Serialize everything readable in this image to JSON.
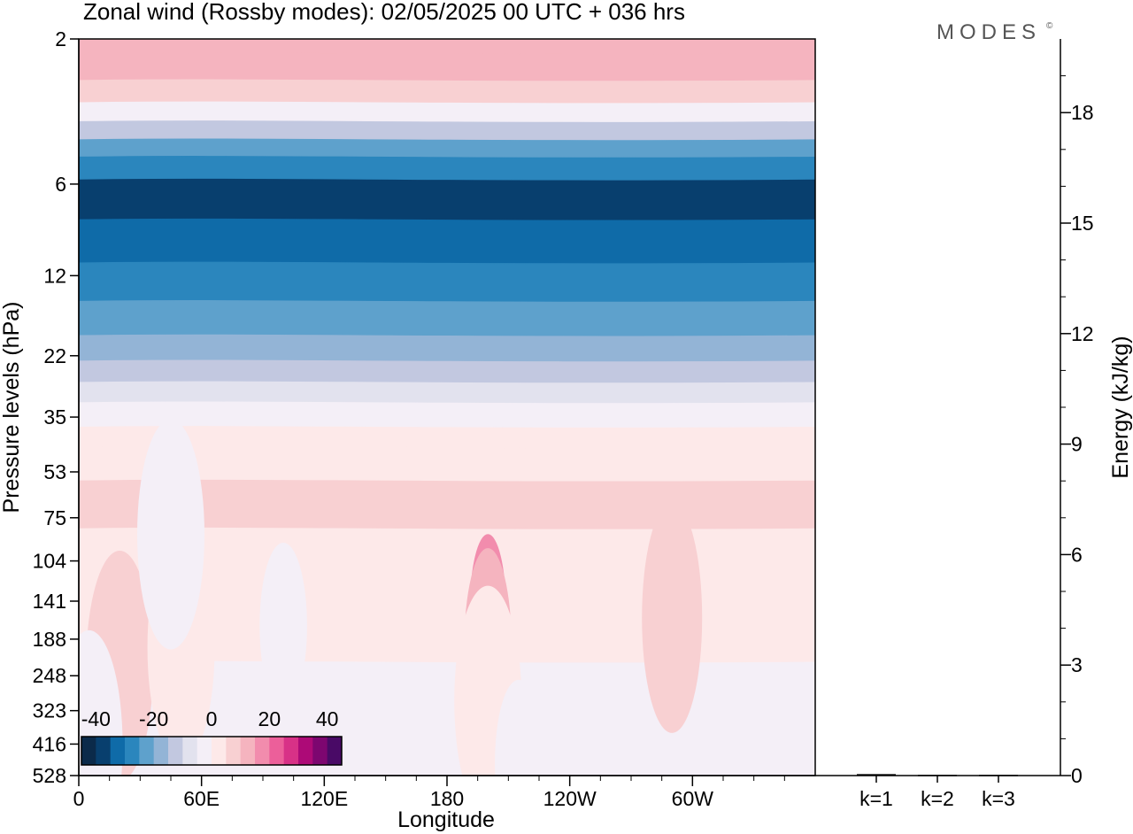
{
  "chart_data": [
    {
      "type": "heatmap",
      "title": "Zonal wind (Rossby modes):  02/05/2025  00 UTC  + 036 hrs",
      "xlabel": "Longitude",
      "ylabel": "Pressure levels (hPa)",
      "x_ticks": [
        "0",
        "60E",
        "120E",
        "180",
        "120W",
        "60W"
      ],
      "y_ticks": [
        "2",
        "6",
        "12",
        "22",
        "35",
        "53",
        "75",
        "104",
        "141",
        "188",
        "248",
        "323",
        "416",
        "528"
      ],
      "y_scale": "log, pressure increasing downward",
      "colorbar": {
        "ticks": [
          "-40",
          "-20",
          "0",
          "20",
          "40"
        ],
        "range": [
          -45,
          45
        ],
        "step": 5,
        "colors": [
          "#0b2a4a",
          "#083f6e",
          "#0f6ba8",
          "#2b86bd",
          "#5ea1cc",
          "#93b4d6",
          "#c2c8e0",
          "#e2e2ee",
          "#f4eff7",
          "#fde9e9",
          "#f8d0d2",
          "#f5b4bf",
          "#f28cad",
          "#ec5f9a",
          "#d83187",
          "#ad0a77",
          "#7d0670",
          "#490a66"
        ]
      },
      "bands": [
        {
          "p": 2,
          "u": 14
        },
        {
          "p": 2.5,
          "u": 12
        },
        {
          "p": 3,
          "u": 6
        },
        {
          "p": 3.5,
          "u": -2
        },
        {
          "p": 4,
          "u": -12
        },
        {
          "p": 4.6,
          "u": -22
        },
        {
          "p": 5.2,
          "u": -30
        },
        {
          "p": 6.5,
          "u": -36
        },
        {
          "p": 9.5,
          "u": -31
        },
        {
          "p": 12.5,
          "u": -28
        },
        {
          "p": 17,
          "u": -22
        },
        {
          "p": 21,
          "u": -17
        },
        {
          "p": 25,
          "u": -12
        },
        {
          "p": 29,
          "u": -7
        },
        {
          "p": 34,
          "u": -2
        },
        {
          "p": 42,
          "u": 2
        },
        {
          "p": 46,
          "u": 4
        },
        {
          "p": 70,
          "u": 6
        },
        {
          "p": 95,
          "u": 2
        },
        {
          "p": 528,
          "u": -1
        }
      ],
      "features": [
        {
          "lon": 200,
          "p": 150,
          "u": 16
        },
        {
          "lon": 200,
          "p": 200,
          "u": 10
        },
        {
          "lon": 200,
          "p": 300,
          "u": 4
        },
        {
          "lon": 290,
          "p": 160,
          "u": 7
        },
        {
          "lon": 20,
          "p": 230,
          "u": 6
        },
        {
          "lon": 50,
          "p": 200,
          "u": 4
        },
        {
          "lon": 45,
          "p": 85,
          "u": -4
        },
        {
          "lon": 100,
          "p": 170,
          "u": -3
        },
        {
          "lon": 5,
          "p": 420,
          "u": -4
        },
        {
          "lon": 215,
          "p": 480,
          "u": -3
        }
      ]
    },
    {
      "type": "bar",
      "ylabel": "Energy (kJ/kg)",
      "categories": [
        "k=1",
        "k=2",
        "k=3"
      ],
      "values": [
        0.04,
        0.02,
        0.02
      ],
      "ylim": [
        0,
        20
      ],
      "y_ticks": [
        "0",
        "3",
        "6",
        "9",
        "12",
        "15",
        "18"
      ]
    }
  ],
  "branding": {
    "logo": "MODES",
    "logo_mark": "©"
  }
}
